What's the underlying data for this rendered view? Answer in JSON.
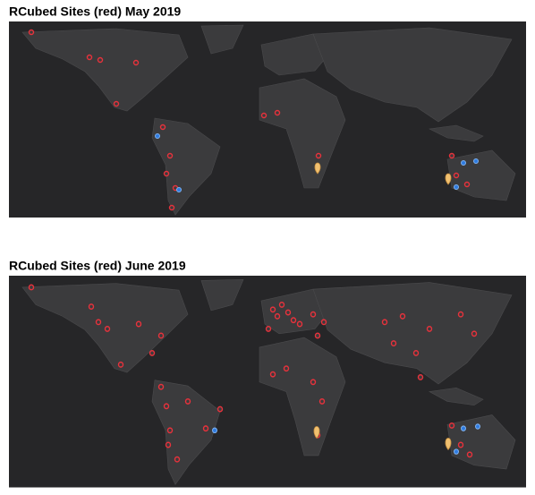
{
  "maps": [
    {
      "title": "RCubed Sites (red) May 2019"
    },
    {
      "title": "RCubed Sites (red) June 2019"
    }
  ]
}
